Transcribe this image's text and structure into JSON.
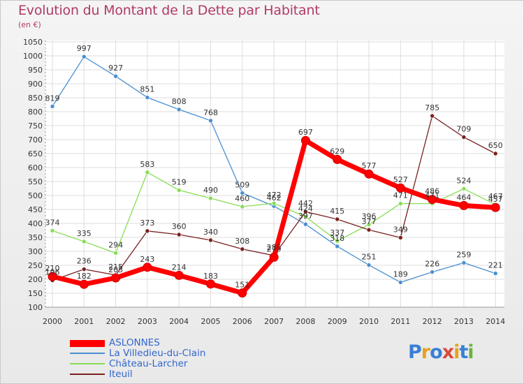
{
  "header": {
    "title": "Evolution du Montant de la Dette par Habitant",
    "subtitle": "(en €)"
  },
  "logo": {
    "text": "Proxiti",
    "colors": [
      "#3a7fd5",
      "#e8a11c",
      "#3a7fd5",
      "#d94b3c",
      "#e8a11c",
      "#3a7fd5",
      "#6bb33c"
    ]
  },
  "chart_data": {
    "type": "line",
    "title": "Evolution du Montant de la Dette par Habitant",
    "subtitle": "(en €)",
    "xlabel": "",
    "ylabel": "",
    "categories": [
      "2000",
      "2001",
      "2002",
      "2003",
      "2004",
      "2005",
      "2006",
      "2007",
      "2008",
      "2009",
      "2010",
      "2011",
      "2012",
      "2013",
      "2014"
    ],
    "ylim": [
      100,
      1050
    ],
    "yticks": [
      100,
      150,
      200,
      250,
      300,
      350,
      400,
      450,
      500,
      550,
      600,
      650,
      700,
      750,
      800,
      850,
      900,
      950,
      1000,
      1050
    ],
    "grid": true,
    "legend": "bottom-left",
    "series": [
      {
        "name": "ASLONNES",
        "color": "#ff0000",
        "values": [
          210,
          182,
          205,
          243,
          214,
          183,
          151,
          279,
          697,
          629,
          577,
          527,
          486,
          464,
          457
        ]
      },
      {
        "name": "La Villedieu-du-Clain",
        "color": "#4a8fd0",
        "values": [
          819,
          997,
          927,
          851,
          808,
          768,
          509,
          462,
          397,
          318,
          251,
          189,
          226,
          259,
          221
        ]
      },
      {
        "name": "Château-Larcher",
        "color": "#88dd55",
        "values": [
          374,
          335,
          294,
          583,
          519,
          490,
          460,
          472,
          424,
          337,
          396,
          471,
          471,
          524,
          467
        ]
      },
      {
        "name": "Iteuil",
        "color": "#7a2020",
        "values": [
          196,
          236,
          215,
          373,
          360,
          340,
          308,
          285,
          442,
          415,
          377,
          349,
          785,
          709,
          650
        ]
      }
    ]
  }
}
